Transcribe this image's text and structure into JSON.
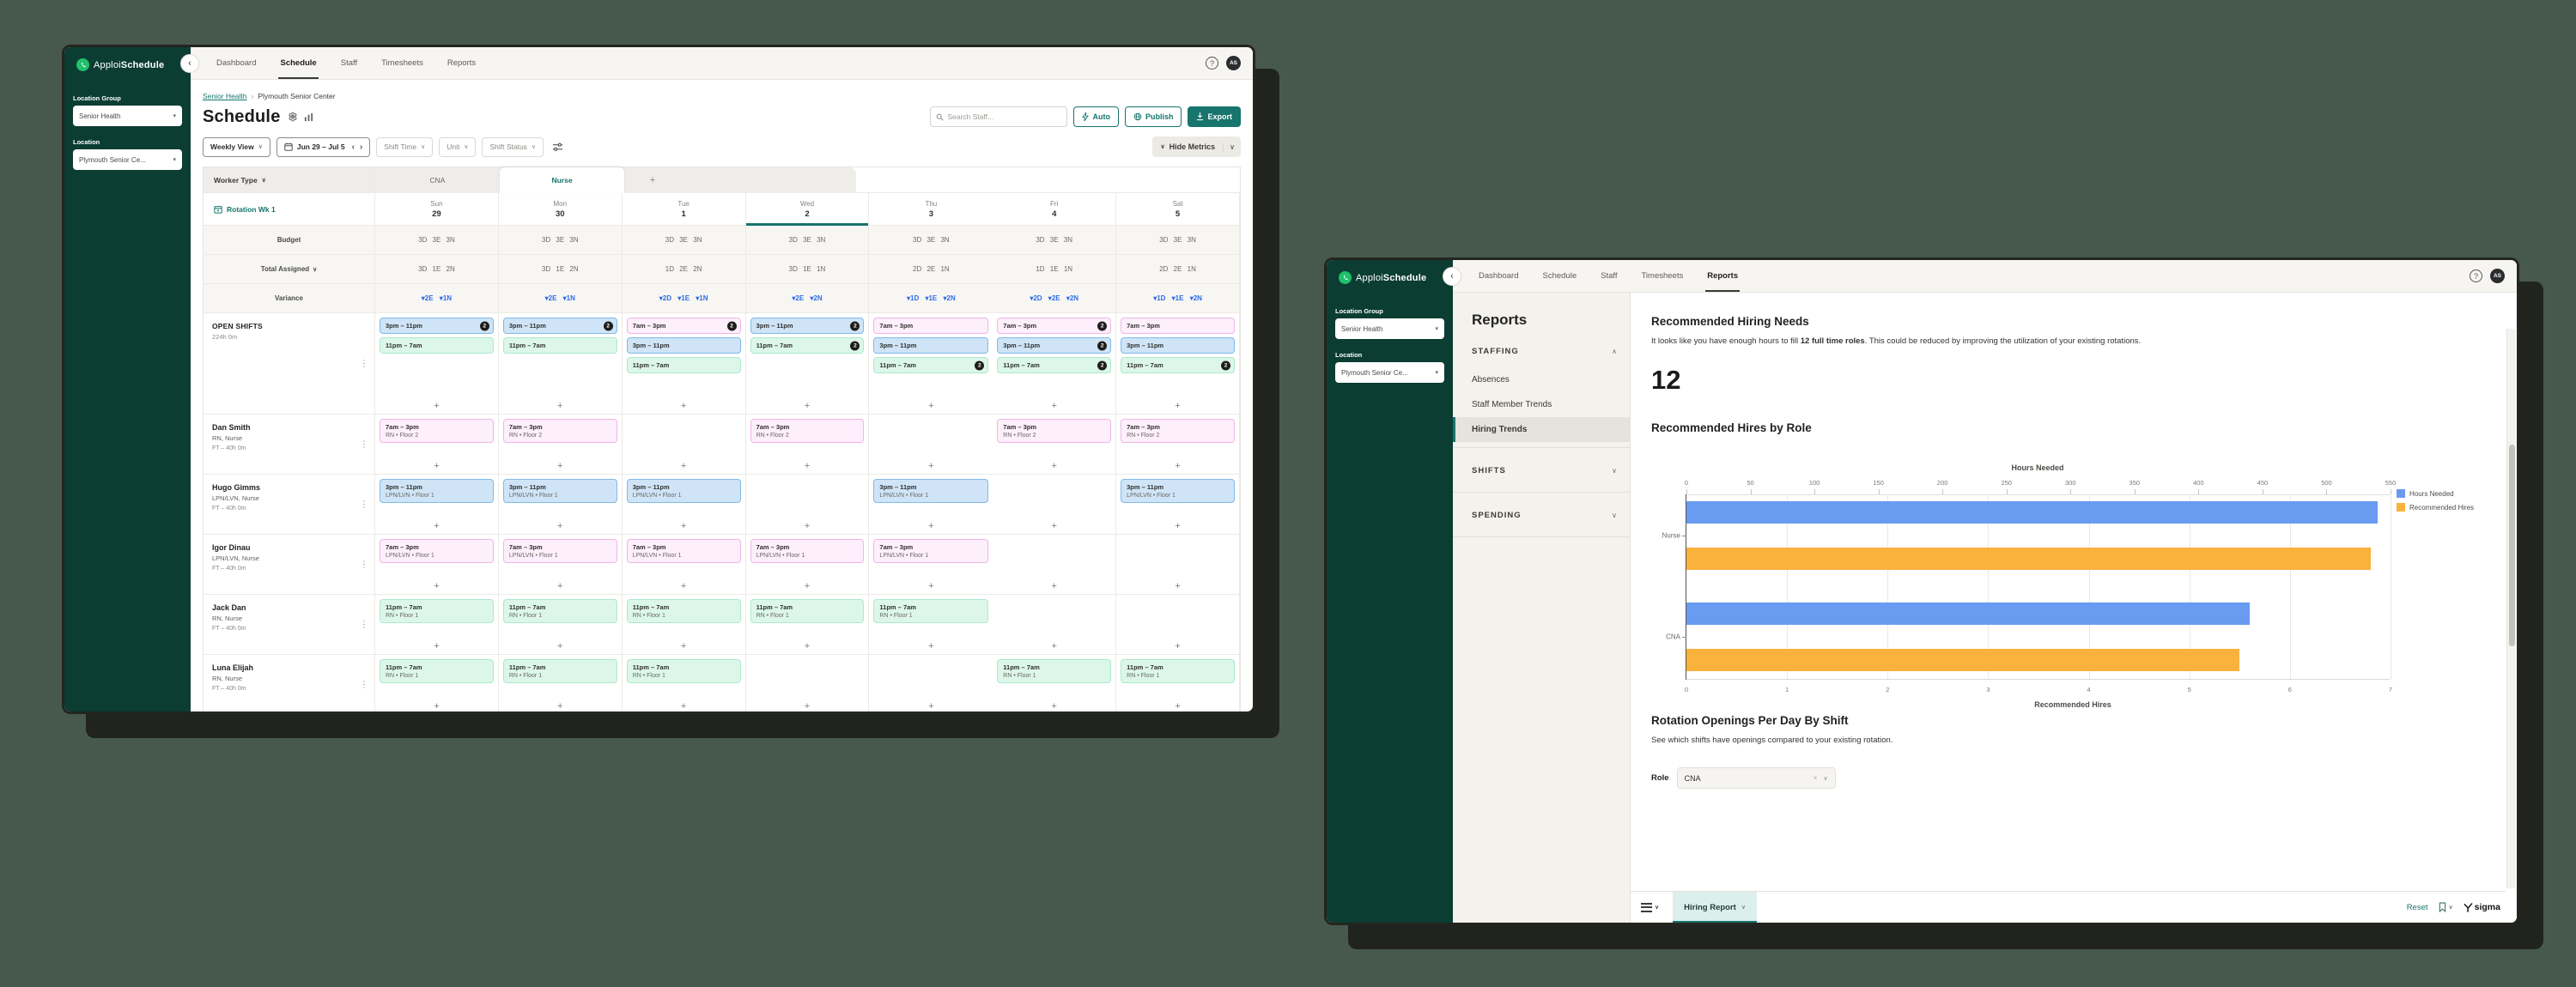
{
  "page_bg": "#47594c",
  "icons": {
    "chevron_down": "∨",
    "chevron_up": "∧",
    "chevron_left": "‹",
    "chevron_right": "›",
    "kebab": "⋮",
    "plus": "+",
    "help": "?",
    "close": "×",
    "breadcrumb_sep": "›"
  },
  "brand": {
    "first": "Apploi",
    "second": "Schedule"
  },
  "nav": {
    "items": [
      "Dashboard",
      "Schedule",
      "Staff",
      "Timesheets",
      "Reports"
    ]
  },
  "location_panel": {
    "group_label": "Location Group",
    "group_value": "Senior Health",
    "location_label": "Location",
    "location_value": "Plymouth Senior Ce..."
  },
  "avatar_initials": "AS",
  "left_window": {
    "nav_active": "Schedule",
    "breadcrumb": {
      "link": "Senior Health",
      "current": "Plymouth Senior Center"
    },
    "header": {
      "title": "Schedule",
      "search_placeholder": "Search Staff...",
      "auto": "Auto",
      "publish": "Publish",
      "export": "Export"
    },
    "filters": {
      "view": "Weekly View",
      "date_range": "Jun 29 – Jul 5",
      "shift_time": "Shift Time",
      "unit": "Unit",
      "shift_status": "Shift Status",
      "hide_metrics": "Hide Metrics"
    },
    "table": {
      "worker_type_label": "Worker Type",
      "tabs": [
        "CNA",
        "Nurse"
      ],
      "active_tab": "Nurse",
      "add_tab": "+",
      "rotation_label": "Rotation Wk 1",
      "days": [
        {
          "name": "Sun",
          "date": "29"
        },
        {
          "name": "Mon",
          "date": "30"
        },
        {
          "name": "Tue",
          "date": "1"
        },
        {
          "name": "Wed",
          "date": "2"
        },
        {
          "name": "Thu",
          "date": "3"
        },
        {
          "name": "Fri",
          "date": "4"
        },
        {
          "name": "Sat",
          "date": "5"
        }
      ],
      "active_day_index": 3,
      "budget_label": "Budget",
      "budget": [
        [
          "3D",
          "3E",
          "3N"
        ],
        [
          "3D",
          "3E",
          "3N"
        ],
        [
          "3D",
          "3E",
          "3N"
        ],
        [
          "3D",
          "3E",
          "3N"
        ],
        [
          "3D",
          "3E",
          "3N"
        ],
        [
          "3D",
          "3E",
          "3N"
        ],
        [
          "3D",
          "3E",
          "3N"
        ]
      ],
      "total_label": "Total Assigned",
      "total": [
        [
          "3D",
          "1E",
          "2N"
        ],
        [
          "3D",
          "1E",
          "2N"
        ],
        [
          "1D",
          "2E",
          "2N"
        ],
        [
          "3D",
          "1E",
          "1N"
        ],
        [
          "2D",
          "2E",
          "1N"
        ],
        [
          "1D",
          "1E",
          "1N"
        ],
        [
          "2D",
          "2E",
          "1N"
        ]
      ],
      "variance_label": "Variance",
      "variance": [
        [
          "▾2E",
          "▾1N"
        ],
        [
          "▾2E",
          "▾1N"
        ],
        [
          "▾2D",
          "▾1E",
          "▾1N"
        ],
        [
          "▾2E",
          "▾2N"
        ],
        [
          "▾1D",
          "▾1E",
          "▾2N"
        ],
        [
          "▾2D",
          "▾2E",
          "▾2N"
        ],
        [
          "▾1D",
          "▾1E",
          "▾2N"
        ]
      ],
      "open_shifts": {
        "label": "OPEN SHIFTS",
        "hours": "224h 0m",
        "days": [
          [
            {
              "time": "3pm – 11pm",
              "color": "blue",
              "badge": "2"
            },
            {
              "time": "11pm – 7am",
              "color": "mint"
            }
          ],
          [
            {
              "time": "3pm – 11pm",
              "color": "blue",
              "badge": "2"
            },
            {
              "time": "11pm – 7am",
              "color": "mint"
            }
          ],
          [
            {
              "time": "7am – 3pm",
              "color": "pink",
              "badge": "2"
            },
            {
              "time": "3pm – 11pm",
              "color": "blue"
            },
            {
              "time": "11pm – 7am",
              "color": "mint"
            }
          ],
          [
            {
              "time": "3pm – 11pm",
              "color": "blue",
              "badge": "2"
            },
            {
              "time": "11pm – 7am",
              "color": "mint",
              "badge": "2"
            }
          ],
          [
            {
              "time": "7am – 3pm",
              "color": "pink"
            },
            {
              "time": "3pm – 11pm",
              "color": "blue"
            },
            {
              "time": "11pm – 7am",
              "color": "mint",
              "badge": "2"
            }
          ],
          [
            {
              "time": "7am – 3pm",
              "color": "pink",
              "badge": "2"
            },
            {
              "time": "3pm – 11pm",
              "color": "blue",
              "badge": "2"
            },
            {
              "time": "11pm – 7am",
              "color": "mint",
              "badge": "2"
            }
          ],
          [
            {
              "time": "7am – 3pm",
              "color": "pink"
            },
            {
              "time": "3pm – 11pm",
              "color": "blue"
            },
            {
              "time": "11pm – 7am",
              "color": "mint",
              "badge": "2"
            }
          ]
        ]
      },
      "staff": [
        {
          "name": "Dan Smith",
          "role": "RN, Nurse",
          "meta": "FT – 40h 0m",
          "shift": {
            "time": "7am – 3pm",
            "detail": "RN • Floor 2",
            "color": "pink"
          },
          "days": [
            1,
            1,
            0,
            1,
            0,
            1,
            1
          ]
        },
        {
          "name": "Hugo Gimms",
          "role": "LPN/LVN, Nurse",
          "meta": "FT – 40h 0m",
          "shift": {
            "time": "3pm – 11pm",
            "detail": "LPN/LVN • Floor 1",
            "color": "blue"
          },
          "days": [
            1,
            1,
            1,
            0,
            1,
            0,
            1
          ]
        },
        {
          "name": "Igor Dinau",
          "role": "LPN/LVN, Nurse",
          "meta": "FT – 40h 0m",
          "shift": {
            "time": "7am – 3pm",
            "detail": "LPN/LVN • Floor 1",
            "color": "pink"
          },
          "days": [
            1,
            1,
            1,
            1,
            1,
            0,
            0
          ]
        },
        {
          "name": "Jack Dan",
          "role": "RN, Nurse",
          "meta": "FT – 40h 0m",
          "shift": {
            "time": "11pm – 7am",
            "detail": "RN • Floor 1",
            "color": "mint"
          },
          "days": [
            1,
            1,
            1,
            1,
            1,
            0,
            0
          ]
        },
        {
          "name": "Luna Elijah",
          "role": "RN, Nurse",
          "meta": "FT – 40h 0m",
          "shift": {
            "time": "11pm – 7am",
            "detail": "RN • Floor 1",
            "color": "mint"
          },
          "days": [
            1,
            1,
            1,
            0,
            0,
            1,
            1
          ]
        }
      ]
    }
  },
  "right_window": {
    "nav_active": "Reports",
    "reports_nav": {
      "title": "Reports",
      "sections": [
        {
          "label": "STAFFING",
          "expanded": true,
          "items": [
            "Absences",
            "Staff Member Trends",
            "Hiring Trends"
          ],
          "active_item": "Hiring Trends"
        },
        {
          "label": "SHIFTS",
          "expanded": false,
          "items": []
        },
        {
          "label": "SPENDING",
          "expanded": false,
          "items": []
        }
      ]
    },
    "main": {
      "hiring_needs_title": "Recommended Hiring Needs",
      "hiring_needs_p1": "It looks like you have enough hours to fill ",
      "hiring_needs_bold": "12 full time roles",
      "hiring_needs_p2": ". This could be reduced by improving the utilization of your existing rotations.",
      "big_number": "12",
      "rotation_title": "Rotation Openings Per Day By Shift",
      "rotation_desc": "See which shifts have openings compared to your existing rotation.",
      "role_label": "Role",
      "role_value": "CNA"
    },
    "footer": {
      "tab": "Hiring Report",
      "reset": "Reset",
      "sigma": "sigma"
    }
  },
  "chart_data": {
    "type": "bar",
    "orientation": "horizontal",
    "title": "Recommended Hires by Role",
    "categories": [
      "Nurse",
      "CNA"
    ],
    "series": [
      {
        "name": "Hours Needed",
        "color": "#699bf0",
        "scale": "hours",
        "values": [
          540,
          440
        ]
      },
      {
        "name": "Recommended Hires",
        "color": "#f9b23c",
        "scale": "hires",
        "values": [
          6.8,
          5.5
        ]
      }
    ],
    "top_axis": {
      "label": "Hours Needed",
      "min": 0,
      "max": 550,
      "ticks": [
        0,
        50,
        100,
        150,
        200,
        250,
        300,
        350,
        400,
        450,
        500,
        550
      ]
    },
    "bottom_axis": {
      "label": "Recommended Hires",
      "min": 0,
      "max": 7,
      "ticks": [
        0,
        1,
        2,
        3,
        4,
        5,
        6,
        7
      ]
    },
    "legend_position": "right",
    "grid": true
  }
}
